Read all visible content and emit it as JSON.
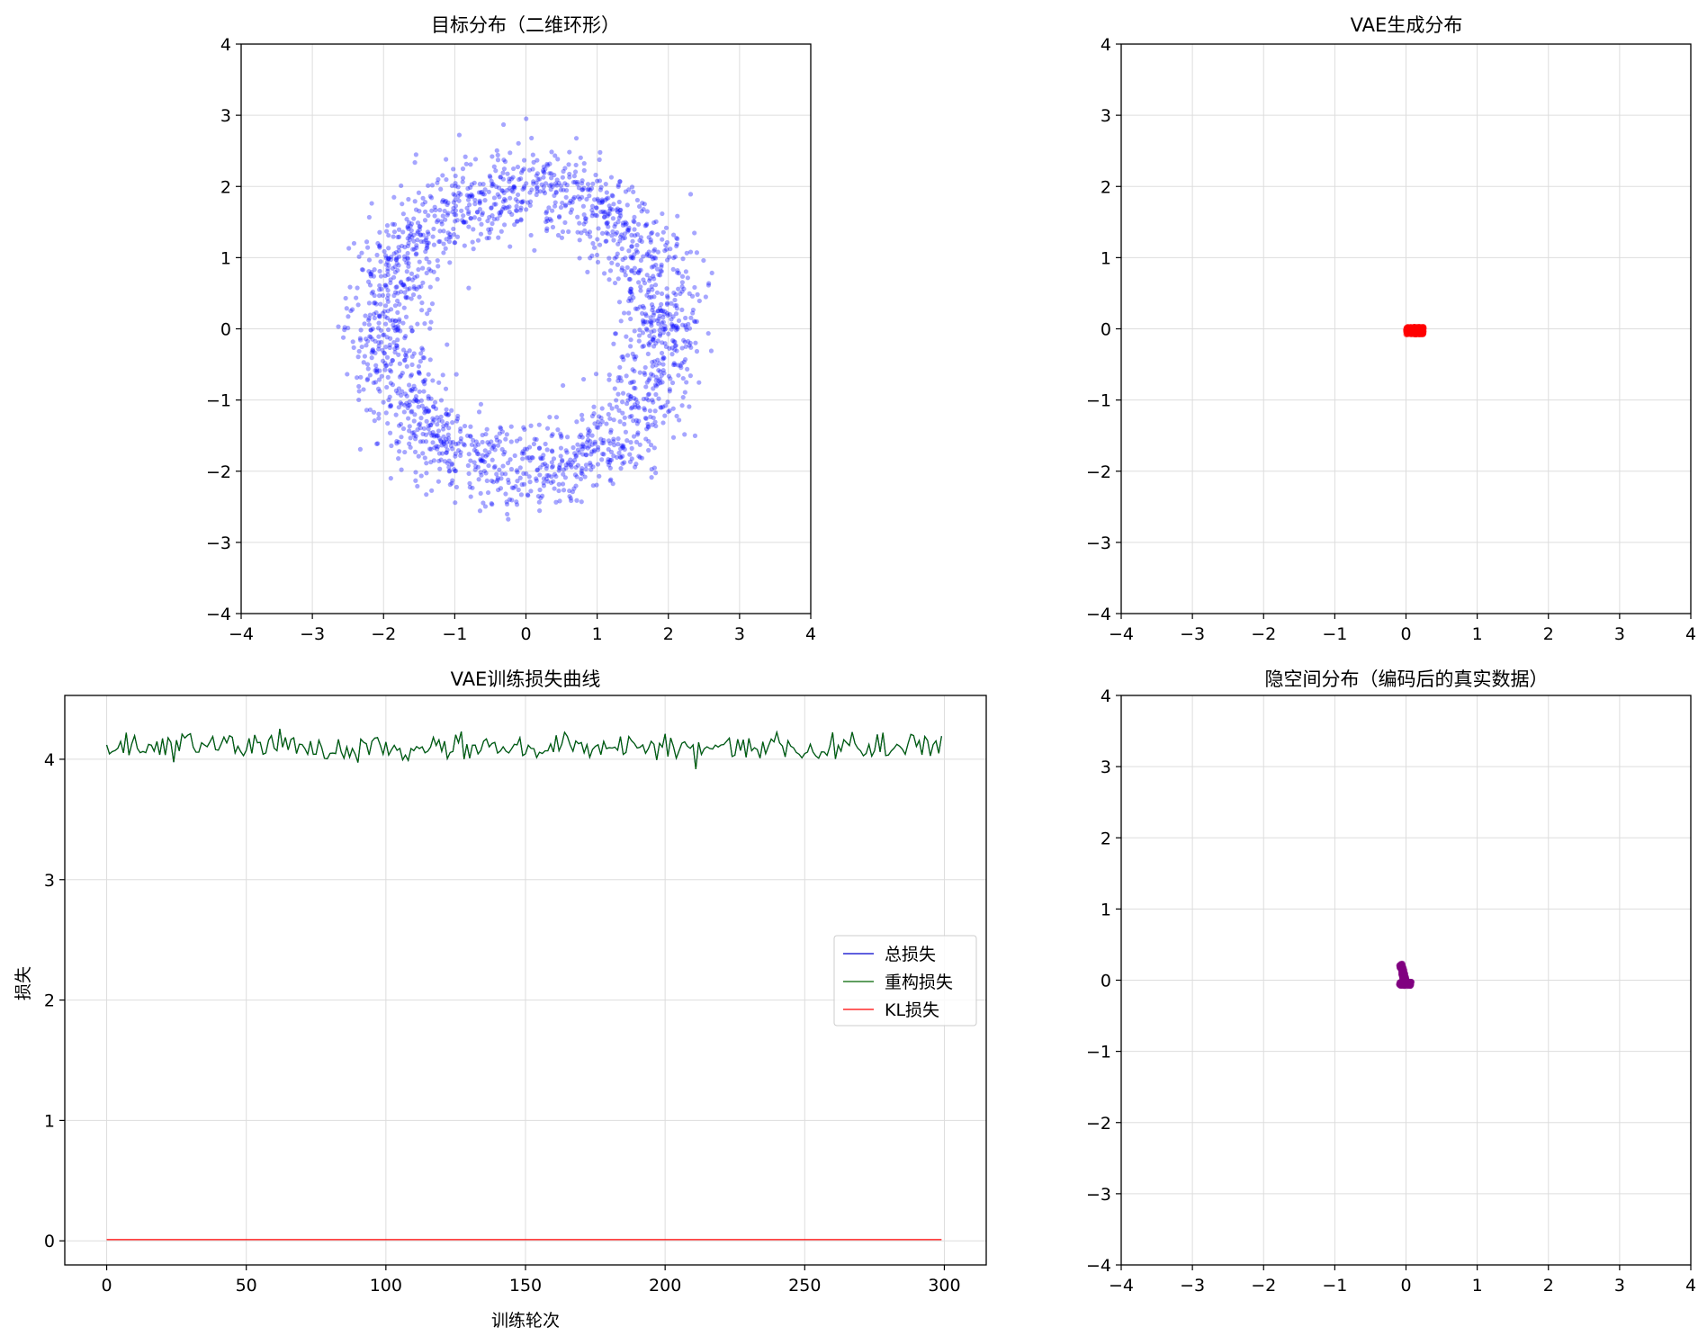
{
  "chart_data": [
    {
      "type": "scatter",
      "title": "目标分布（二维环形）",
      "xlabel": "",
      "ylabel": "",
      "xlim": [
        -4,
        4
      ],
      "ylim": [
        -4,
        4
      ],
      "xticks": [
        "−4",
        "−3",
        "−2",
        "−1",
        "0",
        "1",
        "2",
        "3",
        "4"
      ],
      "yticks": [
        "−4",
        "−3",
        "−2",
        "−1",
        "0",
        "1",
        "2",
        "3",
        "4"
      ],
      "grid": true,
      "point_color": "#0000ff",
      "point_alpha": 0.35,
      "distribution": {
        "shape": "ring",
        "center": [
          0,
          0
        ],
        "radius_mean": 2.0,
        "radius_std": 0.3,
        "n_points": 2000
      }
    },
    {
      "type": "scatter",
      "title": "VAE生成分布",
      "xlabel": "",
      "ylabel": "",
      "xlim": [
        -4,
        4
      ],
      "ylim": [
        -4,
        4
      ],
      "xticks": [
        "−4",
        "−3",
        "−2",
        "−1",
        "0",
        "1",
        "2",
        "3",
        "4"
      ],
      "yticks": [
        "−4",
        "−3",
        "−2",
        "−1",
        "0",
        "1",
        "2",
        "3",
        "4"
      ],
      "grid": true,
      "point_color": "#ff0000",
      "point_alpha": 0.5,
      "distribution": {
        "shape": "cluster",
        "center": [
          0.12,
          -0.03
        ],
        "x_range": [
          0.0,
          0.25
        ],
        "y_range": [
          -0.08,
          0.03
        ],
        "n_points": 400
      }
    },
    {
      "type": "line",
      "title": "VAE训练损失曲线",
      "xlabel": "训练轮次",
      "ylabel": "损失",
      "xlim": [
        -15,
        315
      ],
      "ylim": [
        -0.2,
        4.53
      ],
      "xticks": [
        "0",
        "50",
        "100",
        "150",
        "200",
        "250",
        "300"
      ],
      "yticks": [
        "0",
        "1",
        "2",
        "3",
        "4"
      ],
      "grid": true,
      "legend_position": "center-right",
      "series": [
        {
          "name": "总损失",
          "color": "#0000cc",
          "mean": 4.1,
          "noise_amplitude": 0.09,
          "epochs": 300
        },
        {
          "name": "重构损失",
          "color": "#006400",
          "mean": 4.1,
          "noise_amplitude": 0.09,
          "epochs": 300
        },
        {
          "name": "KL损失",
          "color": "#ff0000",
          "mean": 0.01,
          "noise_amplitude": 0.0,
          "epochs": 300
        }
      ]
    },
    {
      "type": "scatter",
      "title": "隐空间分布（编码后的真实数据）",
      "xlabel": "",
      "ylabel": "",
      "xlim": [
        -4,
        4
      ],
      "ylim": [
        -4,
        4
      ],
      "xticks": [
        "−4",
        "−3",
        "−2",
        "−1",
        "0",
        "1",
        "2",
        "3",
        "4"
      ],
      "yticks": [
        "−4",
        "−3",
        "−2",
        "−1",
        "0",
        "1",
        "2",
        "3",
        "4"
      ],
      "grid": true,
      "point_color": "#800080",
      "point_alpha": 0.6,
      "distribution": {
        "shape": "cluster",
        "center": [
          -0.05,
          0.02
        ],
        "x_range": [
          -0.15,
          0.05
        ],
        "y_range": [
          -0.08,
          0.22
        ],
        "n_points": 400
      }
    }
  ]
}
